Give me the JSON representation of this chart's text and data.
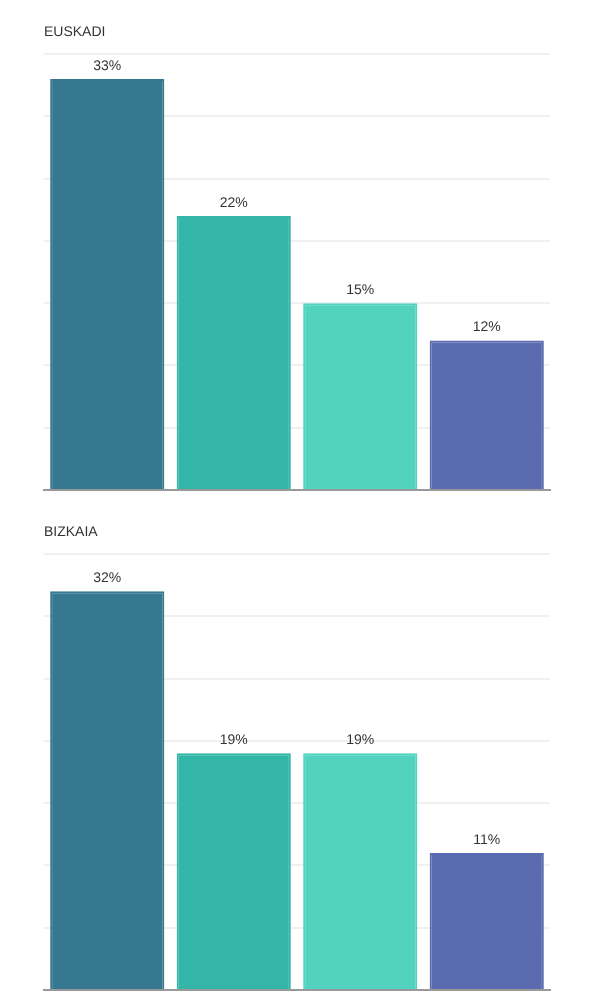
{
  "chart_data": [
    {
      "type": "bar",
      "title": "EUSKADI",
      "categories": [
        null,
        null,
        null,
        null
      ],
      "values": [
        33,
        22,
        15,
        12
      ],
      "colors": [
        "#367890",
        "#33b6a8",
        "#52d3c0",
        "#5b6baf"
      ],
      "ylim": [
        0,
        35
      ],
      "yticks": [
        {
          "value": 0,
          "label": null
        },
        {
          "value": 5,
          "label": null
        },
        {
          "value": 10,
          "label": null
        },
        {
          "value": 15,
          "label": null
        },
        {
          "value": 20,
          "label": null
        },
        {
          "value": 25,
          "label": null
        },
        {
          "value": 30,
          "label": null
        },
        {
          "value": 35,
          "label": null
        }
      ],
      "grid": "y",
      "tick_labels": false,
      "data_labels": true,
      "value_labels": [
        "33%",
        "22%",
        "15%",
        "12%"
      ],
      "legend": false
    },
    {
      "type": "bar",
      "title": "BIZKAIA",
      "categories": [
        null,
        null,
        null,
        null
      ],
      "values": [
        32,
        19,
        19,
        11
      ],
      "colors": [
        "#367890",
        "#33b6a8",
        "#52d3c0",
        "#5b6baf"
      ],
      "ylim": [
        0,
        35
      ],
      "yticks": [
        {
          "value": 0,
          "label": null
        },
        {
          "value": 5,
          "label": null
        },
        {
          "value": 10,
          "label": null
        },
        {
          "value": 15,
          "label": null
        },
        {
          "value": 20,
          "label": null
        },
        {
          "value": 25,
          "label": null
        },
        {
          "value": 30,
          "label": null
        },
        {
          "value": 35,
          "label": null
        }
      ],
      "grid": "y",
      "tick_labels": false,
      "data_labels": true,
      "value_labels": [
        "32%",
        "19%",
        "19%",
        "11%"
      ],
      "legend": false
    }
  ]
}
